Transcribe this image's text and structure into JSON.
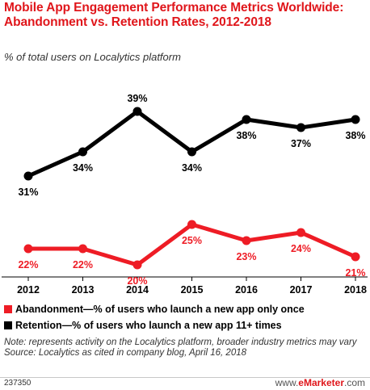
{
  "header": {
    "title": "Mobile App Engagement Performance Metrics Worldwide: Abandonment vs. Retention Rates, 2012-2018",
    "subtitle": "% of total users on Localytics platform"
  },
  "chart_data": {
    "type": "line",
    "title": "Mobile App Engagement Performance Metrics Worldwide: Abandonment vs. Retention Rates, 2012-2018",
    "subtitle": "% of total users on Localytics platform",
    "xlabel": "",
    "ylabel": "",
    "categories": [
      "2012",
      "2013",
      "2014",
      "2015",
      "2016",
      "2017",
      "2018"
    ],
    "ylim": [
      15,
      43
    ],
    "grid": false,
    "legend_position": "bottom",
    "series": [
      {
        "name": "Retention—% of users who launch a new app 11+ times",
        "color": "#000000",
        "values": [
          31,
          34,
          39,
          34,
          38,
          37,
          38
        ],
        "labels": [
          "31%",
          "34%",
          "39%",
          "34%",
          "38%",
          "37%",
          "38%"
        ]
      },
      {
        "name": "Abandonment—% of users who launch a new app only once",
        "color": "#ee1c25",
        "values": [
          22,
          22,
          20,
          25,
          23,
          24,
          21
        ],
        "labels": [
          "22%",
          "22%",
          "20%",
          "25%",
          "23%",
          "24%",
          "21%"
        ]
      }
    ]
  },
  "legend": [
    {
      "label": "Abandonment—% of users who launch a new app only once",
      "color": "#ee1c25"
    },
    {
      "label": "Retention—% of users who launch a new app 11+ times",
      "color": "#000000"
    }
  ],
  "footer": {
    "note": "Note: represents activity on the Localytics platform, broader industry metrics may vary",
    "source": "Source: Localytics as cited in company blog, April 16, 2018",
    "chart_id": "237350",
    "brand_prefix": "www.",
    "brand_name": "eMarketer",
    "brand_suffix": ".com"
  },
  "colors": {
    "title": "#e0161b",
    "axis": "#000000"
  }
}
